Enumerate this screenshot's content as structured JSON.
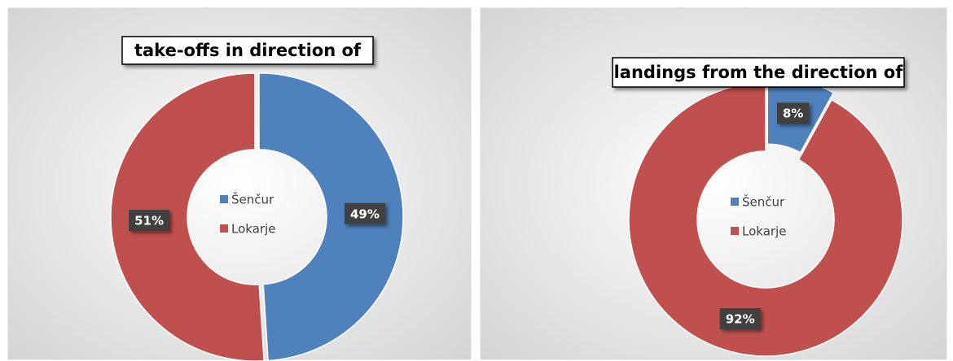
{
  "chart_data": [
    {
      "type": "donut",
      "title": "take-offs in direction of",
      "categories": [
        "Šenčur",
        "Lokarje"
      ],
      "values": [
        49,
        51
      ],
      "value_labels": [
        "49%",
        "51%"
      ],
      "colors": [
        "#4f81bd",
        "#c0504d"
      ],
      "legend": "center"
    },
    {
      "type": "donut",
      "title": "landings from the direction of",
      "categories": [
        "Šenčur",
        "Lokarje"
      ],
      "values": [
        8,
        92
      ],
      "value_labels": [
        "8%",
        "92%"
      ],
      "colors": [
        "#4f81bd",
        "#c0504d"
      ],
      "legend": "center"
    }
  ]
}
